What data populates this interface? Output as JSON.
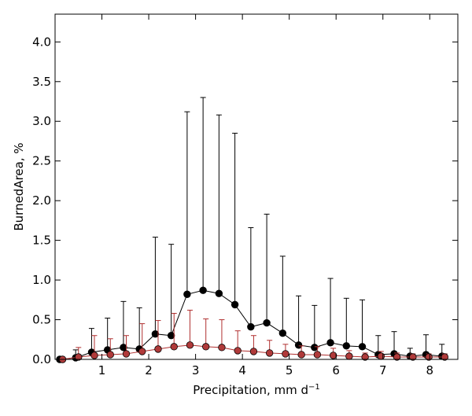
{
  "chart_data": {
    "type": "line",
    "xlabel": "Precipitation,  mm d",
    "xlabel_sup": "−1",
    "ylabel": "BurnedArea,  %",
    "xlim": [
      0,
      8.6
    ],
    "ylim": [
      0,
      4.35
    ],
    "xticks": [
      1,
      2,
      3,
      4,
      5,
      6,
      7,
      8
    ],
    "yticks": [
      0.0,
      0.5,
      1.0,
      1.5,
      2.0,
      2.5,
      3.0,
      3.5,
      4.0
    ],
    "xtick_labels": [
      "1",
      "2",
      "3",
      "4",
      "5",
      "6",
      "7",
      "8"
    ],
    "ytick_labels": [
      "0.0",
      "0.5",
      "1.0",
      "1.5",
      "2.0",
      "2.5",
      "3.0",
      "3.5",
      "4.0"
    ],
    "grid": false,
    "series": [
      {
        "color": "#000000",
        "marker_color": "#000000",
        "x": [
          0.1,
          0.44,
          0.78,
          1.12,
          1.46,
          1.8,
          2.14,
          2.48,
          2.82,
          3.16,
          3.5,
          3.84,
          4.18,
          4.52,
          4.86,
          5.2,
          5.54,
          5.88,
          6.22,
          6.56,
          6.9,
          7.24,
          7.58,
          7.92,
          8.26
        ],
        "y": [
          0.0,
          0.02,
          0.09,
          0.12,
          0.15,
          0.13,
          0.32,
          0.3,
          0.82,
          0.87,
          0.83,
          0.69,
          0.41,
          0.46,
          0.33,
          0.18,
          0.15,
          0.21,
          0.17,
          0.16,
          0.06,
          0.07,
          0.04,
          0.06,
          0.04
        ],
        "err_upper": [
          0.02,
          0.1,
          0.3,
          0.4,
          0.58,
          0.52,
          1.22,
          1.15,
          2.3,
          2.43,
          2.25,
          2.16,
          1.25,
          1.37,
          0.97,
          0.62,
          0.53,
          0.81,
          0.6,
          0.59,
          0.24,
          0.28,
          0.1,
          0.25,
          0.15
        ]
      },
      {
        "color": "#b03030",
        "marker_color": "#b03a3a",
        "x": [
          0.16,
          0.5,
          0.84,
          1.18,
          1.52,
          1.86,
          2.2,
          2.54,
          2.88,
          3.22,
          3.56,
          3.9,
          4.24,
          4.58,
          4.92,
          5.26,
          5.6,
          5.94,
          6.28,
          6.62,
          6.96,
          7.3,
          7.64,
          7.98,
          8.32
        ],
        "y": [
          0.0,
          0.03,
          0.05,
          0.06,
          0.07,
          0.1,
          0.13,
          0.16,
          0.18,
          0.16,
          0.15,
          0.11,
          0.1,
          0.08,
          0.07,
          0.06,
          0.06,
          0.05,
          0.04,
          0.03,
          0.04,
          0.03,
          0.03,
          0.03,
          0.03
        ],
        "err_upper": [
          0.01,
          0.12,
          0.25,
          0.2,
          0.23,
          0.35,
          0.36,
          0.42,
          0.44,
          0.35,
          0.35,
          0.25,
          0.2,
          0.16,
          0.12,
          0.11,
          0.1,
          0.09,
          0.07,
          0.05,
          0.06,
          0.05,
          0.04,
          0.04,
          0.04
        ]
      }
    ]
  }
}
